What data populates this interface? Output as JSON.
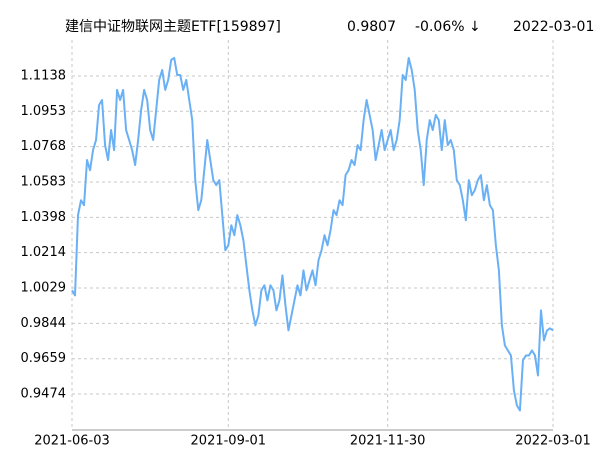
{
  "chart_data": {
    "type": "line",
    "title": "建信中证物联网主题ETF[159897]",
    "latest": 0.9807,
    "change": "-0.06% ↓",
    "date": "2022-03-01",
    "categories": [
      "2021-06-03",
      null,
      null,
      null,
      null,
      null,
      null,
      null,
      null,
      null,
      null,
      null,
      null,
      null,
      null,
      null,
      null,
      null,
      null,
      null,
      null,
      null,
      null,
      null,
      null,
      null,
      null,
      null,
      null,
      null,
      null,
      null,
      null,
      null,
      null,
      null,
      null,
      null,
      null,
      null,
      null,
      null,
      null,
      null,
      null,
      null,
      null,
      null,
      null,
      null,
      null,
      null,
      "2021-09-01",
      null,
      null,
      null,
      null,
      null,
      null,
      null,
      null,
      null,
      null,
      null,
      null,
      null,
      null,
      null,
      null,
      null,
      null,
      null,
      null,
      null,
      null,
      null,
      null,
      null,
      null,
      null,
      null,
      null,
      null,
      null,
      null,
      null,
      null,
      null,
      null,
      null,
      null,
      null,
      null,
      null,
      null,
      null,
      null,
      null,
      null,
      null,
      null,
      null,
      null,
      null,
      null,
      "2021-11-30",
      null,
      null,
      null,
      null,
      null,
      null,
      null,
      null,
      null,
      null,
      null,
      null,
      null,
      null,
      null,
      null,
      null,
      null,
      null,
      null,
      null,
      null,
      null,
      null,
      null,
      null,
      null,
      null,
      null,
      null,
      null,
      null,
      null,
      null,
      null,
      null,
      null,
      null,
      null,
      null,
      null,
      null,
      null,
      null,
      null,
      null,
      null,
      null,
      null,
      null,
      null,
      null,
      null,
      null,
      "2022-03-01"
    ],
    "series": [
      {
        "color": "#6ab0f5",
        "values": [
          1.0017,
          0.999,
          1.041,
          1.0488,
          1.0462,
          1.0698,
          1.0645,
          1.075,
          1.0803,
          1.0986,
          1.1012,
          1.0776,
          1.0698,
          1.0855,
          1.075,
          1.1065,
          1.1012,
          1.1065,
          1.0855,
          1.0803,
          1.075,
          1.0672,
          1.0803,
          1.096,
          1.1065,
          1.1012,
          1.0855,
          1.0803,
          1.096,
          1.1117,
          1.1169,
          1.1065,
          1.1117,
          1.1222,
          1.1232,
          1.1143,
          1.1143,
          1.1065,
          1.1117,
          1.1012,
          1.0907,
          1.0593,
          1.0436,
          1.0488,
          1.0645,
          1.0803,
          1.0698,
          1.0593,
          1.0567,
          1.0593,
          1.041,
          1.0226,
          1.0252,
          1.0357,
          1.0305,
          1.041,
          1.0357,
          1.0279,
          1.0148,
          1.0017,
          0.9912,
          0.9833,
          0.9886,
          1.0017,
          1.0043,
          0.9964,
          1.0043,
          1.0017,
          0.9912,
          0.9964,
          1.0095,
          0.9938,
          0.9807,
          0.9886,
          0.9964,
          1.0043,
          0.999,
          1.0121,
          1.0017,
          1.0069,
          1.0121,
          1.0043,
          1.0174,
          1.0226,
          1.0305,
          1.0252,
          1.0331,
          1.0436,
          1.041,
          1.0488,
          1.0462,
          1.0619,
          1.0645,
          1.0698,
          1.0672,
          1.0776,
          1.075,
          1.0907,
          1.1012,
          1.0934,
          1.0855,
          1.0698,
          1.0776,
          1.0855,
          1.075,
          1.0803,
          1.0855,
          1.075,
          1.0803,
          1.0907,
          1.1143,
          1.1117,
          1.1232,
          1.1169,
          1.1065,
          1.0855,
          1.075,
          1.0567,
          1.0803,
          1.0907,
          1.0855,
          1.0934,
          1.0907,
          1.075,
          1.0907,
          1.0776,
          1.0803,
          1.075,
          1.0593,
          1.0567,
          1.0488,
          1.0383,
          1.0593,
          1.0514,
          1.0541,
          1.0593,
          1.0619,
          1.0488,
          1.0567,
          1.0462,
          1.0436,
          1.0252,
          1.0121,
          0.9833,
          0.9728,
          0.9702,
          0.9676,
          0.9493,
          0.9414,
          0.9388,
          0.965,
          0.9676,
          0.9676,
          0.9702,
          0.9676,
          0.9571,
          0.9912,
          0.9755,
          0.9807,
          0.9818,
          0.9807
        ]
      }
    ],
    "ylim": [
      0.9286,
      1.1326
    ],
    "yticks": [
      0.9474,
      0.9659,
      0.9844,
      1.0029,
      1.0214,
      1.0398,
      1.0583,
      1.0768,
      1.0953,
      1.1138
    ],
    "grid": true,
    "header_colors": {
      "title": "#000000",
      "latest": "#2a9a2a",
      "change": "#2a9a2a",
      "date": "#000000"
    }
  }
}
